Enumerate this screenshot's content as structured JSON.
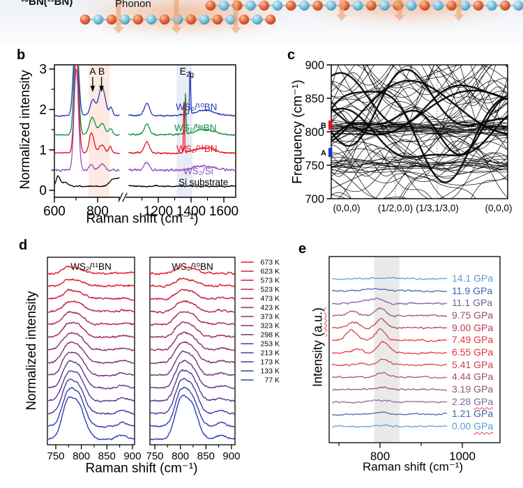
{
  "figure": {
    "top_illustration": {
      "left_label": "¹⁰BN(¹¹BN)",
      "phonon_label": "Phonon",
      "boron_atom_color": "#e2673f",
      "nitrogen_atom_color": "#7fc2dc",
      "arrow_color": "#eda26e"
    },
    "panel_letters": {
      "b": "b",
      "c": "c",
      "d": "d",
      "e": "e"
    }
  },
  "chart_data": [
    {
      "id": "b",
      "type": "line",
      "xlabel": "Raman shift (cm⁻¹)",
      "ylabel": "Normalized intensity",
      "x_ticks_left": [
        600,
        800
      ],
      "x_ticks_right": [
        1200,
        1400,
        1600
      ],
      "x_minor_left": [
        700,
        900
      ],
      "x_minor_right": [
        1100,
        1300,
        1500
      ],
      "y_ticks": [
        0,
        1,
        2,
        3
      ],
      "y_minor": [
        0.5,
        1.5,
        2.5
      ],
      "ylim": [
        0,
        3.1
      ],
      "axis_break": [
        905,
        1020
      ],
      "shaded_bands": [
        {
          "x0": 758,
          "x1": 855,
          "color": "#fdeae2"
        },
        {
          "x0": 1312,
          "x1": 1407,
          "color": "#e9ebf5"
        }
      ],
      "peak_annotations": [
        {
          "label": "A",
          "x": 777
        },
        {
          "label": "B",
          "x": 818
        },
        {
          "label": "E",
          "sub": "2g",
          "x": 1374
        }
      ],
      "series": [
        {
          "name": "WS₂/¹⁰BN",
          "color": "#2338b9",
          "baseline": 1.85,
          "noise": 0.02,
          "peaks": [
            [
              700,
              2.2,
              11
            ],
            [
              777,
              0.38,
              12
            ],
            [
              820,
              0.72,
              15
            ],
            [
              862,
              0.2,
              7
            ],
            [
              1130,
              0.3,
              16
            ],
            [
              1394,
              1.05,
              3.5
            ],
            [
              1480,
              0.13,
              60
            ]
          ]
        },
        {
          "name": "WS₂/ᴺᵃBN",
          "color": "#0f9040",
          "baseline": 1.38,
          "noise": 0.02,
          "peaks": [
            [
              701,
              2.6,
              10
            ],
            [
              775,
              0.42,
              13
            ],
            [
              820,
              0.28,
              14
            ],
            [
              860,
              0.14,
              8
            ],
            [
              1130,
              0.25,
              16
            ],
            [
              1366,
              1.0,
              3
            ],
            [
              1480,
              0.12,
              60
            ]
          ]
        },
        {
          "name": "WS₂/¹¹BN",
          "color": "#ea1020",
          "baseline": 0.92,
          "noise": 0.022,
          "peaks": [
            [
              702,
              2.5,
              10
            ],
            [
              772,
              0.5,
              11
            ],
            [
              820,
              0.2,
              13
            ],
            [
              858,
              0.17,
              7
            ],
            [
              1130,
              0.28,
              16
            ],
            [
              1357,
              1.3,
              3
            ],
            [
              1480,
              0.13,
              60
            ]
          ]
        },
        {
          "name": "WS₂/Si",
          "color": "#8d51c0",
          "baseline": 0.5,
          "noise": 0.035,
          "peaks": [
            [
              701,
              2.5,
              10
            ],
            [
              770,
              0.12,
              10
            ],
            [
              820,
              0.15,
              12
            ],
            [
              1130,
              0.22,
              16
            ],
            [
              1480,
              0.1,
              60
            ]
          ]
        },
        {
          "name": "Si substrate",
          "color": "#000000",
          "baseline": 0.1,
          "noise": 0.018,
          "peaks": [
            [
              617,
              0.25,
              9
            ],
            [
              650,
              0.1,
              15
            ],
            [
              870,
              0.09,
              14
            ],
            [
              930,
              0.28,
              40
            ]
          ]
        }
      ]
    },
    {
      "id": "c",
      "type": "line",
      "subtype": "phonon-dispersion",
      "ylabel": "Frequency (cm⁻¹)",
      "ylim": [
        700,
        900
      ],
      "y_ticks": [
        700,
        750,
        800,
        850,
        900
      ],
      "x_labels": [
        "(0,0,0)",
        "(1/2,0,0)",
        "(1/3,1/3,0)",
        "(0,0,0)"
      ],
      "mode_markers": [
        {
          "label": "B",
          "freq": 810,
          "color": "#e8101c"
        },
        {
          "label": "A",
          "freq": 769,
          "color": "#1a35cc"
        }
      ],
      "band_color": "#000000",
      "band_count": 85
    },
    {
      "id": "d",
      "type": "line",
      "xlabel": "Raman shift (cm⁻¹)",
      "ylabel": "Normalized intensity",
      "x_ticks": [
        750,
        800,
        850,
        900
      ],
      "x_minor_ticks": [
        775,
        825,
        875
      ],
      "xlim": [
        736,
        906
      ],
      "subpanels": [
        {
          "title": "WS₂/¹¹BN",
          "peaks": [
            [
              772,
              0.92,
              11
            ],
            [
              794,
              1.0,
              13
            ],
            [
              880,
              0.13,
              9
            ]
          ]
        },
        {
          "title": "WS₂/¹⁰BN",
          "peaks": [
            [
              799,
              0.95,
              11
            ],
            [
              821,
              1.0,
              13
            ],
            [
              880,
              0.12,
              9
            ]
          ]
        }
      ],
      "legend_temperatures": [
        "673 K",
        "623 K",
        "573 K",
        "523 K",
        "473 K",
        "423 K",
        "373 K",
        "323 K",
        "298 K",
        "253 K",
        "213 K",
        "173 K",
        "133 K",
        "77 K"
      ],
      "color_hot": "#e8192c",
      "color_cold": "#2a40b2"
    },
    {
      "id": "e",
      "type": "line",
      "xlabel": "Raman shift (cm⁻¹)",
      "ylabel": "Intensity (a.u.)",
      "ylabel_prefix": "Intensity ",
      "ylabel_wavy": "(a.u.)",
      "x_ticks": [
        800,
        1000
      ],
      "x_minor_ticks": [
        700,
        900,
        1100
      ],
      "xlim": [
        676,
        1091
      ],
      "shaded_band": [
        786,
        847
      ],
      "series": [
        {
          "pressure": "14.1 GPa",
          "color": "#5b9bd5",
          "amp": 2.5,
          "noise": 1.4,
          "squiggle": false,
          "peaks": [
            [
              800,
              0.5,
              30
            ]
          ]
        },
        {
          "pressure": "11.9 GPa",
          "color": "#4063ae",
          "amp": 4,
          "noise": 1.6,
          "squiggle": false,
          "peaks": [
            [
              790,
              0.8,
              25
            ]
          ]
        },
        {
          "pressure": "11.1 GPa",
          "color": "#6f5f9e",
          "amp": 7,
          "noise": 1.7,
          "squiggle": false,
          "peaks": [
            [
              760,
              0.6,
              20
            ],
            [
              795,
              1,
              14
            ]
          ]
        },
        {
          "pressure": "9.75 GPa",
          "color": "#9d4a69",
          "amp": 10,
          "noise": 1.8,
          "squiggle": false,
          "peaks": [
            [
              735,
              0.7,
              12
            ],
            [
              800,
              1,
              13
            ]
          ]
        },
        {
          "pressure": "9.00 GPa",
          "color": "#c23a50",
          "amp": 13,
          "noise": 1.8,
          "squiggle": false,
          "peaks": [
            [
              735,
              0.75,
              12
            ],
            [
              803,
              1,
              12
            ]
          ]
        },
        {
          "pressure": "7.49 GPa",
          "color": "#e73238",
          "amp": 16,
          "noise": 1.8,
          "squiggle": false,
          "peaks": [
            [
              730,
              0.85,
              13
            ],
            [
              800,
              1,
              12
            ]
          ]
        },
        {
          "pressure": "6.55 GPa",
          "color": "#e62e36",
          "amp": 15,
          "noise": 1.7,
          "squiggle": false,
          "peaks": [
            [
              745,
              0.35,
              12
            ],
            [
              808,
              1,
              13
            ]
          ]
        },
        {
          "pressure": "5.41 GPa",
          "color": "#cc4050",
          "amp": 9,
          "noise": 1.6,
          "squiggle": false,
          "peaks": [
            [
              750,
              0.3,
              12
            ],
            [
              808,
              1,
              13
            ]
          ]
        },
        {
          "pressure": "4.44 GPa",
          "color": "#b14a63",
          "amp": 6,
          "noise": 1.6,
          "squiggle": false,
          "peaks": [
            [
              806,
              1,
              14
            ]
          ]
        },
        {
          "pressure": "3.19 GPa",
          "color": "#96536f",
          "amp": 4,
          "noise": 1.5,
          "squiggle": false,
          "peaks": [
            [
              805,
              1,
              14
            ]
          ]
        },
        {
          "pressure": "2.28 GPa",
          "color": "#7a6898",
          "amp": 2.5,
          "noise": 1.4,
          "squiggle": true,
          "peaks": [
            [
              800,
              1,
              18
            ]
          ]
        },
        {
          "pressure": "1.21 GPa",
          "color": "#4363ac",
          "amp": 2,
          "noise": 1.4,
          "squiggle": false,
          "peaks": [
            [
              805,
              1,
              15
            ]
          ]
        },
        {
          "pressure": "0.00 GPa",
          "color": "#5b9bd5",
          "amp": 2,
          "noise": 1.4,
          "squiggle": true,
          "peaks": [
            [
              810,
              1,
              14
            ]
          ]
        }
      ]
    }
  ]
}
